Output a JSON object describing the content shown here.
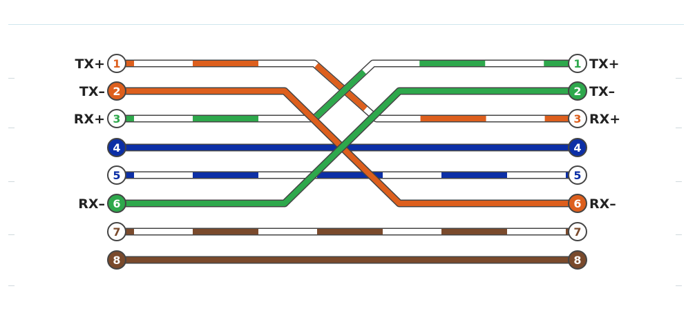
{
  "colors": {
    "orange": "#dd5f1d",
    "green": "#2ea84c",
    "blue": "#0c2fa6",
    "brown": "#7a4a2c",
    "white": "#ffffff",
    "outline": "#444444"
  },
  "left_pins": [
    {
      "num": "1",
      "label": "TX+",
      "style": "stripe",
      "color": "orange"
    },
    {
      "num": "2",
      "label": "TX–",
      "style": "solid",
      "color": "orange"
    },
    {
      "num": "3",
      "label": "RX+",
      "style": "stripe",
      "color": "green"
    },
    {
      "num": "4",
      "label": "",
      "style": "solid",
      "color": "blue"
    },
    {
      "num": "5",
      "label": "",
      "style": "stripe",
      "color": "blue"
    },
    {
      "num": "6",
      "label": "RX–",
      "style": "solid",
      "color": "green"
    },
    {
      "num": "7",
      "label": "",
      "style": "stripe",
      "color": "brown"
    },
    {
      "num": "8",
      "label": "",
      "style": "solid",
      "color": "brown"
    }
  ],
  "right_pins": [
    {
      "num": "1",
      "label": "TX+",
      "style": "stripe",
      "color": "green"
    },
    {
      "num": "2",
      "label": "TX–",
      "style": "solid",
      "color": "green"
    },
    {
      "num": "3",
      "label": "RX+",
      "style": "stripe",
      "color": "orange"
    },
    {
      "num": "4",
      "label": "",
      "style": "solid",
      "color": "blue"
    },
    {
      "num": "5",
      "label": "",
      "style": "stripe",
      "color": "blue"
    },
    {
      "num": "6",
      "label": "RX–",
      "style": "solid",
      "color": "orange"
    },
    {
      "num": "7",
      "label": "",
      "style": "stripe",
      "color": "brown"
    },
    {
      "num": "8",
      "label": "",
      "style": "solid",
      "color": "brown"
    }
  ],
  "wires": [
    {
      "from": 1,
      "to": 3,
      "style": "stripe",
      "color": "orange"
    },
    {
      "from": 2,
      "to": 6,
      "style": "solid",
      "color": "orange"
    },
    {
      "from": 3,
      "to": 1,
      "style": "stripe",
      "color": "green"
    },
    {
      "from": 4,
      "to": 4,
      "style": "solid",
      "color": "blue"
    },
    {
      "from": 5,
      "to": 5,
      "style": "stripe",
      "color": "blue"
    },
    {
      "from": 6,
      "to": 2,
      "style": "solid",
      "color": "green"
    },
    {
      "from": 7,
      "to": 7,
      "style": "stripe",
      "color": "brown"
    },
    {
      "from": 8,
      "to": 8,
      "style": "solid",
      "color": "brown"
    }
  ]
}
